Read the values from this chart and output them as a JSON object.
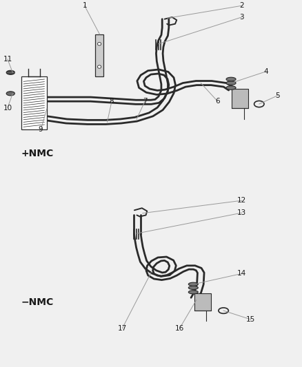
{
  "bg_color": "#f0f0f0",
  "line_color": "#2a2a2a",
  "label_color": "#1a1a1a",
  "callout_color": "#999999",
  "section1_label": "+NMC",
  "section2_label": "−NMC",
  "fig_width": 4.38,
  "fig_height": 5.33,
  "dpi": 100
}
